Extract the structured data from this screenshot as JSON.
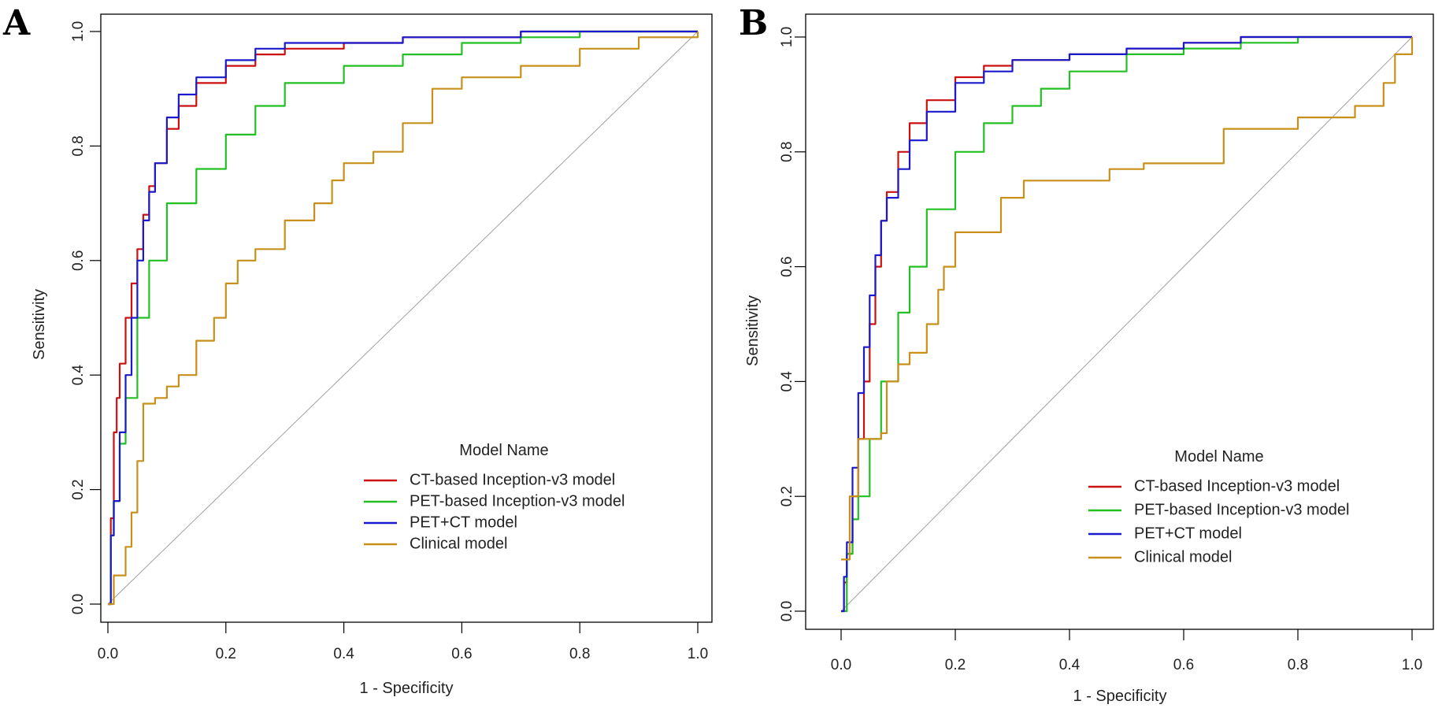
{
  "chart_data": [
    {
      "panel_label": "A",
      "type": "line",
      "title": "",
      "xlabel": "1 - Specificity",
      "ylabel": "Sensitivity",
      "xlim": [
        0,
        1
      ],
      "ylim": [
        0,
        1
      ],
      "x_ticks": [
        "0.0",
        "0.2",
        "0.4",
        "0.6",
        "0.8",
        "1.0"
      ],
      "y_ticks": [
        "0.0",
        "0.2",
        "0.4",
        "0.6",
        "0.8",
        "1.0"
      ],
      "legend_title": "Model Name",
      "legend_position": "bottom-right",
      "reference_line": {
        "x": [
          0,
          1
        ],
        "y": [
          0,
          1
        ],
        "color": "#a0a0a0"
      },
      "series": [
        {
          "name": "CT-based Inception-v3 model",
          "color": "#cc1010",
          "x": [
            0,
            0.005,
            0.01,
            0.015,
            0.02,
            0.03,
            0.04,
            0.05,
            0.06,
            0.07,
            0.08,
            0.1,
            0.12,
            0.15,
            0.2,
            0.25,
            0.3,
            0.4,
            0.5,
            0.6,
            0.7,
            0.8,
            0.9,
            1.0
          ],
          "y": [
            0,
            0.15,
            0.3,
            0.36,
            0.42,
            0.5,
            0.56,
            0.62,
            0.68,
            0.73,
            0.77,
            0.83,
            0.87,
            0.91,
            0.94,
            0.96,
            0.97,
            0.98,
            0.99,
            0.99,
            1.0,
            1.0,
            1.0,
            1.0
          ]
        },
        {
          "name": "PET-based Inception-v3 model",
          "color": "#22c022",
          "x": [
            0,
            0.005,
            0.01,
            0.02,
            0.03,
            0.05,
            0.07,
            0.1,
            0.15,
            0.2,
            0.25,
            0.3,
            0.4,
            0.5,
            0.6,
            0.7,
            0.8,
            0.9,
            1.0
          ],
          "y": [
            0,
            0.12,
            0.18,
            0.28,
            0.36,
            0.5,
            0.6,
            0.7,
            0.76,
            0.82,
            0.87,
            0.91,
            0.94,
            0.96,
            0.98,
            0.99,
            1.0,
            1.0,
            1.0
          ]
        },
        {
          "name": "PET+CT model",
          "color": "#1a1acc",
          "x": [
            0,
            0.005,
            0.01,
            0.02,
            0.03,
            0.04,
            0.05,
            0.06,
            0.07,
            0.08,
            0.1,
            0.12,
            0.15,
            0.2,
            0.25,
            0.3,
            0.4,
            0.5,
            0.6,
            0.7,
            0.8,
            0.9,
            1.0
          ],
          "y": [
            0,
            0.12,
            0.18,
            0.3,
            0.4,
            0.5,
            0.6,
            0.67,
            0.72,
            0.77,
            0.85,
            0.89,
            0.92,
            0.95,
            0.97,
            0.98,
            0.98,
            0.99,
            0.99,
            1.0,
            1.0,
            1.0,
            1.0
          ]
        },
        {
          "name": "Clinical model",
          "color": "#c8901a",
          "x": [
            0,
            0.01,
            0.02,
            0.03,
            0.04,
            0.05,
            0.06,
            0.08,
            0.1,
            0.12,
            0.15,
            0.18,
            0.2,
            0.22,
            0.25,
            0.3,
            0.35,
            0.38,
            0.4,
            0.45,
            0.5,
            0.55,
            0.6,
            0.7,
            0.8,
            0.9,
            1.0
          ],
          "y": [
            0,
            0.05,
            0.05,
            0.1,
            0.16,
            0.25,
            0.35,
            0.36,
            0.38,
            0.4,
            0.46,
            0.5,
            0.56,
            0.6,
            0.62,
            0.67,
            0.7,
            0.74,
            0.77,
            0.79,
            0.84,
            0.9,
            0.92,
            0.94,
            0.97,
            0.99,
            1.0
          ]
        }
      ]
    },
    {
      "panel_label": "B",
      "type": "line",
      "title": "",
      "xlabel": "1 - Specificity",
      "ylabel": "Sensitivity",
      "xlim": [
        0,
        1
      ],
      "ylim": [
        0,
        1
      ],
      "x_ticks": [
        "0.0",
        "0.2",
        "0.4",
        "0.6",
        "0.8",
        "1.0"
      ],
      "y_ticks": [
        "0.0",
        "0.2",
        "0.4",
        "0.6",
        "0.8",
        "1.0"
      ],
      "legend_title": "Model Name",
      "legend_position": "bottom-right",
      "reference_line": {
        "x": [
          0,
          1
        ],
        "y": [
          0,
          1
        ],
        "color": "#a0a0a0"
      },
      "series": [
        {
          "name": "CT-based Inception-v3 model",
          "color": "#cc1010",
          "x": [
            0,
            0.005,
            0.01,
            0.02,
            0.03,
            0.04,
            0.05,
            0.06,
            0.07,
            0.08,
            0.1,
            0.12,
            0.15,
            0.2,
            0.25,
            0.3,
            0.4,
            0.5,
            0.6,
            0.7,
            0.8,
            0.9,
            1.0
          ],
          "y": [
            0,
            0.05,
            0.1,
            0.2,
            0.3,
            0.4,
            0.5,
            0.6,
            0.68,
            0.73,
            0.8,
            0.85,
            0.89,
            0.93,
            0.95,
            0.96,
            0.97,
            0.98,
            0.99,
            1.0,
            1.0,
            1.0,
            1.0
          ]
        },
        {
          "name": "PET-based Inception-v3 model",
          "color": "#22c022",
          "x": [
            0,
            0.01,
            0.02,
            0.03,
            0.05,
            0.07,
            0.1,
            0.12,
            0.15,
            0.2,
            0.25,
            0.3,
            0.35,
            0.4,
            0.5,
            0.6,
            0.7,
            0.8,
            0.9,
            1.0
          ],
          "y": [
            0,
            0.1,
            0.16,
            0.2,
            0.3,
            0.4,
            0.52,
            0.6,
            0.7,
            0.8,
            0.85,
            0.88,
            0.91,
            0.94,
            0.97,
            0.98,
            0.99,
            1.0,
            1.0,
            1.0
          ]
        },
        {
          "name": "PET+CT model",
          "color": "#1a1acc",
          "x": [
            0,
            0.005,
            0.01,
            0.02,
            0.03,
            0.04,
            0.05,
            0.06,
            0.07,
            0.08,
            0.1,
            0.12,
            0.15,
            0.2,
            0.25,
            0.3,
            0.4,
            0.5,
            0.6,
            0.7,
            0.8,
            0.9,
            1.0
          ],
          "y": [
            0,
            0.06,
            0.12,
            0.25,
            0.38,
            0.46,
            0.55,
            0.62,
            0.68,
            0.72,
            0.77,
            0.82,
            0.87,
            0.92,
            0.94,
            0.96,
            0.97,
            0.98,
            0.99,
            1.0,
            1.0,
            1.0,
            1.0
          ]
        },
        {
          "name": "Clinical model",
          "color": "#c8901a",
          "x": [
            0,
            0.015,
            0.03,
            0.05,
            0.07,
            0.08,
            0.1,
            0.12,
            0.15,
            0.17,
            0.18,
            0.2,
            0.24,
            0.28,
            0.32,
            0.4,
            0.47,
            0.53,
            0.6,
            0.65,
            0.67,
            0.75,
            0.8,
            0.88,
            0.9,
            0.95,
            0.97,
            1.0
          ],
          "y": [
            0.09,
            0.2,
            0.3,
            0.3,
            0.31,
            0.4,
            0.43,
            0.45,
            0.5,
            0.56,
            0.6,
            0.66,
            0.66,
            0.72,
            0.75,
            0.75,
            0.77,
            0.78,
            0.78,
            0.78,
            0.84,
            0.84,
            0.86,
            0.86,
            0.88,
            0.92,
            0.97,
            1.0
          ]
        }
      ]
    }
  ]
}
